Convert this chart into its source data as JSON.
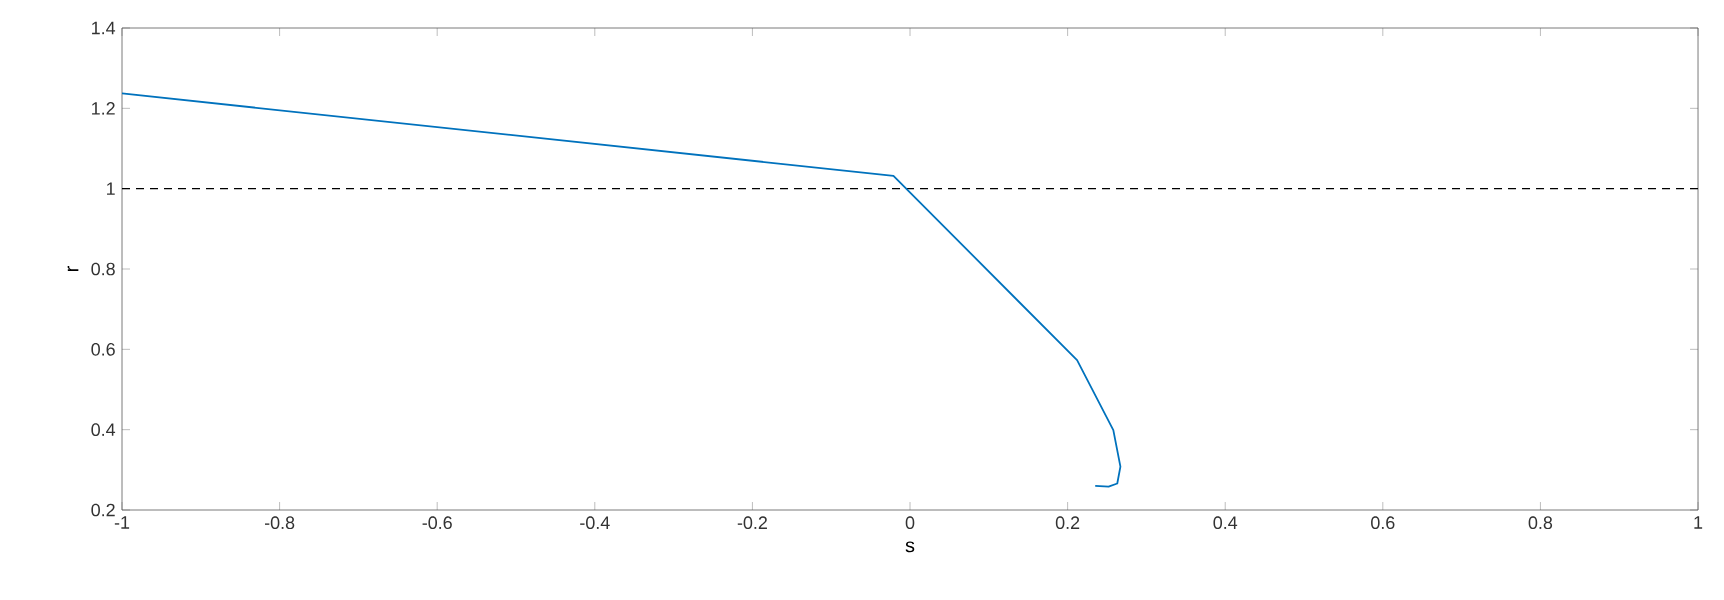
{
  "chart_data": {
    "type": "line",
    "xlabel": "s",
    "ylabel": "r",
    "series": [
      {
        "color": "#0072bd",
        "x": [
          -1,
          -0.021,
          0.212,
          0.258,
          0.267,
          0.263,
          0.252,
          0.235
        ],
        "values": [
          1.237,
          1.032,
          0.573,
          0.399,
          0.308,
          0.266,
          0.258,
          0.26
        ]
      }
    ],
    "xlim": [
      -1,
      1
    ],
    "ylim": [
      0.2,
      1.4
    ],
    "xticks": [
      -1,
      -0.8,
      -0.6,
      -0.4,
      -0.2,
      0,
      0.2,
      0.4,
      0.6,
      0.8,
      1
    ],
    "yticks": [
      0.2,
      0.4,
      0.6,
      0.8,
      1,
      1.2,
      1.4
    ],
    "ref_lines": [
      {
        "axis": "y",
        "value": 1,
        "color": "#000000",
        "line_style": "dashed"
      }
    ],
    "grid": false,
    "line_style": "solid",
    "marker": "none"
  }
}
